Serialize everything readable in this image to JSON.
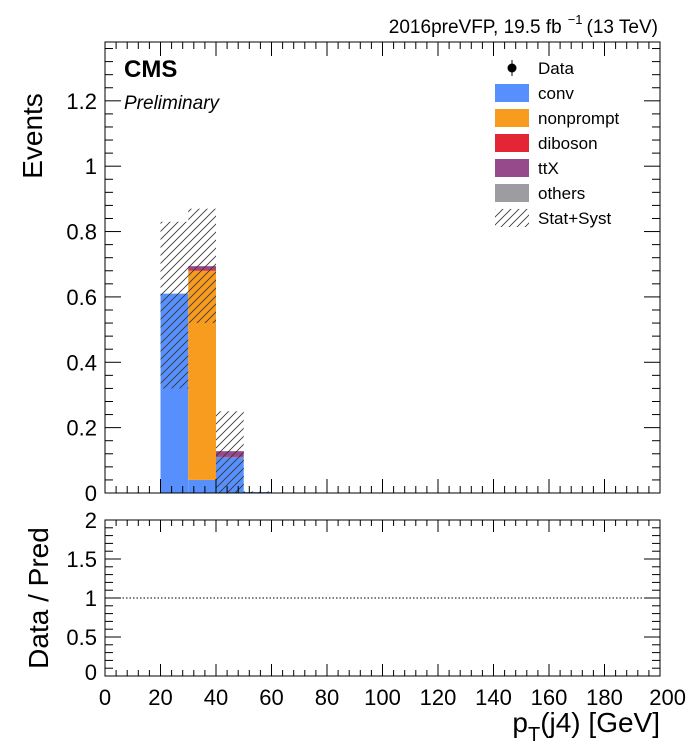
{
  "header": {
    "lumi_text": "2016preVFP, 19.5 fb",
    "lumi_exp": "−1",
    "lumi_energy": "(13 TeV)",
    "experiment": "CMS",
    "status": "Preliminary"
  },
  "colors": {
    "conv": "#5790fc",
    "nonprompt": "#f89c20",
    "diboson": "#e42536",
    "ttX": "#964a8b",
    "others": "#9c9ca1"
  },
  "chart_data": [
    {
      "type": "bar",
      "stacked": true,
      "ylabel": "Events",
      "xlim": [
        0,
        200
      ],
      "ylim": [
        0,
        1.38
      ],
      "yticks": [
        0,
        0.2,
        0.4,
        0.6,
        0.8,
        1,
        1.2
      ],
      "ytick_labels": [
        "0",
        "0.2",
        "0.4",
        "0.6",
        "0.8",
        "1",
        "1.2"
      ],
      "bin_edges": [
        20,
        30,
        40,
        50,
        60
      ],
      "legend": {
        "placement": "top-right",
        "entries": [
          {
            "label": "Data",
            "kind": "marker"
          },
          {
            "label": "conv",
            "kind": "fill",
            "color": "#5790fc"
          },
          {
            "label": "nonprompt",
            "kind": "fill",
            "color": "#f89c20"
          },
          {
            "label": "diboson",
            "kind": "fill",
            "color": "#e42536"
          },
          {
            "label": "ttX",
            "kind": "fill",
            "color": "#964a8b"
          },
          {
            "label": "others",
            "kind": "fill",
            "color": "#9c9ca1"
          },
          {
            "label": "Stat+Syst",
            "kind": "hatch"
          }
        ]
      },
      "series": [
        {
          "name": "conv",
          "color": "#5790fc",
          "values": [
            0.61,
            0.04,
            0.11,
            0.003
          ]
        },
        {
          "name": "nonprompt",
          "color": "#f89c20",
          "values": [
            0.0,
            0.64,
            0.0,
            0.0
          ]
        },
        {
          "name": "diboson",
          "color": "#e42536",
          "values": [
            0.0,
            0.004,
            0.002,
            0.0
          ]
        },
        {
          "name": "ttX",
          "color": "#964a8b",
          "values": [
            0.0,
            0.01,
            0.016,
            0.0
          ]
        },
        {
          "name": "others",
          "color": "#9c9ca1",
          "values": [
            0.0,
            0.0,
            0.0,
            0.0
          ]
        }
      ],
      "uncertainty": {
        "name": "Stat+Syst",
        "low": [
          0.32,
          0.52,
          0.0,
          0.0
        ],
        "high": [
          0.83,
          0.87,
          0.25,
          0.005
        ]
      }
    },
    {
      "type": "line",
      "ylabel": "Data / Pred",
      "xlabel_main": "p",
      "xlabel_sub": "T",
      "xlabel_rest": "(j4) [GeV]",
      "xlim": [
        0,
        200
      ],
      "ylim": [
        0,
        2
      ],
      "yticks": [
        0,
        0.5,
        1,
        1.5,
        2
      ],
      "ytick_labels": [
        "0",
        "0.5",
        "1",
        "1.5",
        "2"
      ],
      "xticks": [
        0,
        20,
        40,
        60,
        80,
        100,
        120,
        140,
        160,
        180,
        200
      ],
      "xtick_labels": [
        "0",
        "20",
        "40",
        "60",
        "80",
        "100",
        "120",
        "140",
        "160",
        "180",
        "200"
      ],
      "reference_line": 1
    }
  ]
}
